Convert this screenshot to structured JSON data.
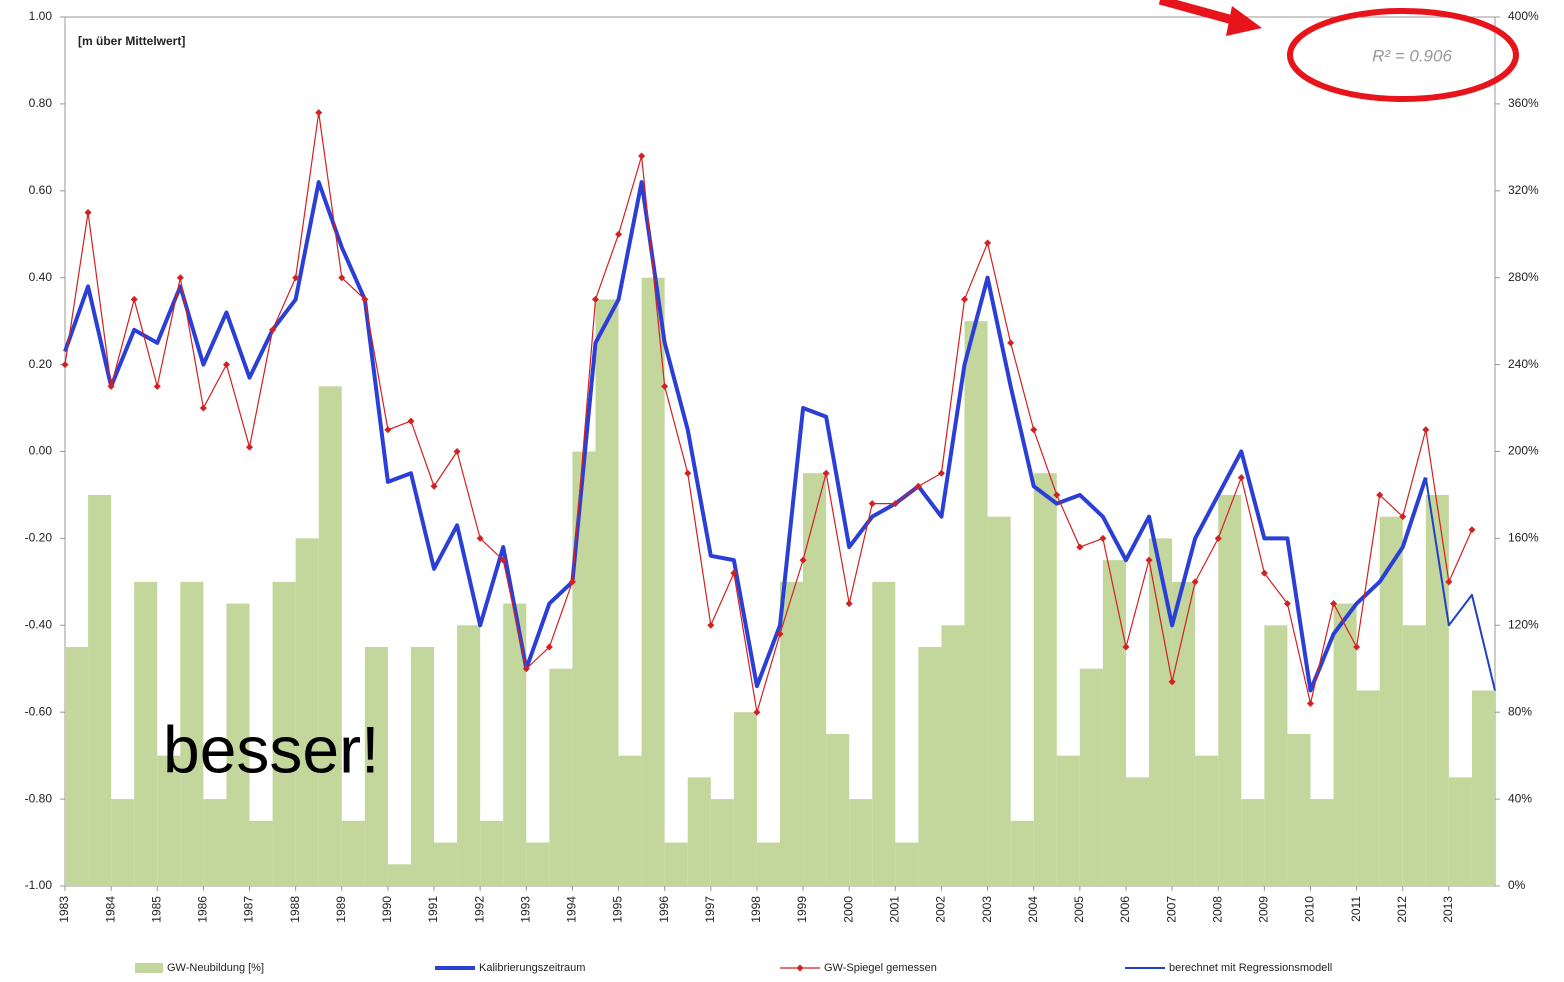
{
  "chart_data": {
    "type": "combo",
    "axis_title": "[m über Mittelwert]",
    "annotations": [
      "R² = 0.906",
      "besser!"
    ],
    "x": [
      1983,
      1983.5,
      1984,
      1984.5,
      1985,
      1985.5,
      1986,
      1986.5,
      1987,
      1987.5,
      1988,
      1988.5,
      1989,
      1989.5,
      1990,
      1990.5,
      1991,
      1991.5,
      1992,
      1992.5,
      1993,
      1993.5,
      1994,
      1994.5,
      1995,
      1995.5,
      1996,
      1996.5,
      1997,
      1997.5,
      1998,
      1998.5,
      1999,
      1999.5,
      2000,
      2000.5,
      2001,
      2001.5,
      2002,
      2002.5,
      2003,
      2003.5,
      2004,
      2004.5,
      2005,
      2005.5,
      2006,
      2006.5,
      2007,
      2007.5,
      2008,
      2008.5,
      2009,
      2009.5,
      2010,
      2010.5,
      2011,
      2011.5,
      2012,
      2012.5,
      2013,
      2013.5,
      2014
    ],
    "series": [
      {
        "name": "GW-Neubildung [%]",
        "kind": "bar",
        "axis": "y2",
        "color": "#c3d69b",
        "values": [
          110,
          180,
          40,
          140,
          60,
          140,
          40,
          130,
          30,
          140,
          160,
          230,
          30,
          110,
          10,
          110,
          20,
          120,
          30,
          130,
          20,
          100,
          200,
          270,
          60,
          280,
          20,
          50,
          40,
          80,
          20,
          140,
          190,
          70,
          40,
          140,
          20,
          110,
          120,
          260,
          170,
          30,
          190,
          60,
          100,
          150,
          50,
          160,
          140,
          60,
          180,
          40,
          120,
          70,
          40,
          130,
          90,
          170,
          120,
          180,
          50,
          90,
          null
        ]
      },
      {
        "name": "Kalibrierungszeitraum",
        "kind": "line",
        "color": "#2b3fd6",
        "width": 4,
        "values": [
          0.23,
          0.38,
          0.15,
          0.28,
          0.25,
          0.38,
          0.2,
          0.32,
          0.17,
          0.28,
          0.35,
          0.62,
          0.47,
          0.35,
          -0.07,
          -0.05,
          -0.27,
          -0.17,
          -0.4,
          -0.22,
          -0.5,
          -0.35,
          -0.3,
          0.25,
          0.35,
          0.62,
          0.25,
          0.05,
          -0.24,
          -0.25,
          -0.54,
          -0.4,
          0.1,
          0.08,
          -0.22,
          -0.15,
          -0.12,
          -0.08,
          -0.15,
          0.2,
          0.4,
          0.15,
          -0.08,
          -0.12,
          -0.1,
          -0.15,
          -0.25,
          -0.15,
          -0.4,
          -0.2,
          -0.1,
          0.0,
          -0.2,
          -0.2,
          -0.55,
          -0.42,
          -0.35,
          -0.3,
          -0.22,
          -0.06,
          null,
          null,
          null
        ]
      },
      {
        "name": "GW-Spiegel gemessen",
        "kind": "line",
        "color": "#d42020",
        "width": 1.2,
        "markers": true,
        "values": [
          0.2,
          0.55,
          0.15,
          0.35,
          0.15,
          0.4,
          0.1,
          0.2,
          0.01,
          0.28,
          0.4,
          0.78,
          0.4,
          0.35,
          0.05,
          0.07,
          -0.08,
          0.0,
          -0.2,
          -0.25,
          -0.5,
          -0.45,
          -0.3,
          0.35,
          0.5,
          0.68,
          0.15,
          -0.05,
          -0.4,
          -0.28,
          -0.6,
          -0.42,
          -0.25,
          -0.05,
          -0.35,
          -0.12,
          -0.12,
          -0.08,
          -0.05,
          0.35,
          0.48,
          0.25,
          0.05,
          -0.1,
          -0.22,
          -0.2,
          -0.45,
          -0.25,
          -0.53,
          -0.3,
          -0.2,
          -0.06,
          -0.28,
          -0.35,
          -0.58,
          -0.35,
          -0.45,
          -0.1,
          -0.15,
          0.05,
          -0.3,
          -0.18,
          null
        ]
      },
      {
        "name": "berechnet mit Regressionsmodell",
        "kind": "line",
        "color": "#2040c8",
        "width": 2,
        "values": [
          null,
          null,
          null,
          null,
          null,
          null,
          null,
          null,
          null,
          null,
          null,
          null,
          null,
          null,
          null,
          null,
          null,
          null,
          null,
          null,
          null,
          null,
          null,
          null,
          null,
          null,
          null,
          null,
          null,
          null,
          null,
          null,
          null,
          null,
          null,
          null,
          null,
          null,
          null,
          null,
          null,
          null,
          null,
          null,
          null,
          null,
          null,
          null,
          null,
          null,
          null,
          null,
          null,
          null,
          null,
          null,
          null,
          null,
          null,
          -0.06,
          -0.4,
          -0.33,
          -0.55
        ]
      }
    ],
    "xlim": [
      1983,
      2014
    ],
    "xticks": [
      1983,
      1984,
      1985,
      1986,
      1987,
      1988,
      1989,
      1990,
      1991,
      1992,
      1993,
      1994,
      1995,
      1996,
      1997,
      1998,
      1999,
      2000,
      2001,
      2002,
      2003,
      2004,
      2005,
      2006,
      2007,
      2008,
      2009,
      2010,
      2011,
      2012,
      2013
    ],
    "ylim": [
      -1,
      1
    ],
    "yticks": [
      {
        "value": 1,
        "label": "1.00"
      },
      {
        "value": 0.8,
        "label": "0.80"
      },
      {
        "value": 0.6,
        "label": "0.60"
      },
      {
        "value": 0.4,
        "label": "0.40"
      },
      {
        "value": 0.2,
        "label": "0.20"
      },
      {
        "value": 0,
        "label": "0.00"
      },
      {
        "value": -0.2,
        "label": "-0.20"
      },
      {
        "value": -0.4,
        "label": "-0.40"
      },
      {
        "value": -0.6,
        "label": "-0.60"
      },
      {
        "value": -0.8,
        "label": "-0.80"
      },
      {
        "value": -1,
        "label": "-1.00"
      }
    ],
    "y2lim": [
      0,
      400
    ],
    "y2ticks": [
      {
        "value": 0,
        "label": "0%"
      },
      {
        "value": 40,
        "label": "40%"
      },
      {
        "value": 80,
        "label": "80%"
      },
      {
        "value": 120,
        "label": "120%"
      },
      {
        "value": 160,
        "label": "160%"
      },
      {
        "value": 200,
        "label": "200%"
      },
      {
        "value": 240,
        "label": "240%"
      },
      {
        "value": 280,
        "label": "280%"
      },
      {
        "value": 320,
        "label": "320%"
      },
      {
        "value": 360,
        "label": "360%"
      },
      {
        "value": 400,
        "label": "400%"
      }
    ],
    "grid": false
  }
}
